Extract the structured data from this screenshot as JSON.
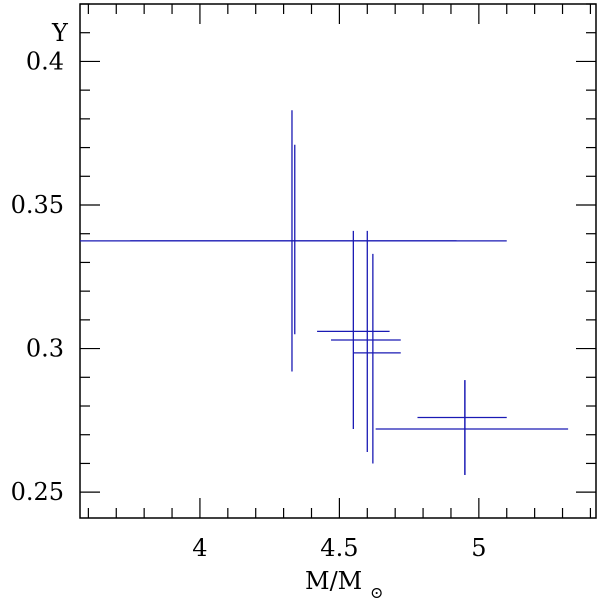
{
  "chart_data": {
    "type": "scatter",
    "xlabel": "M/M",
    "xlabel_subscript": "⊙",
    "ylabel": "Y",
    "xlim": [
      3.57,
      5.42
    ],
    "ylim": [
      0.241,
      0.42
    ],
    "x_ticks": [
      {
        "value": 4,
        "label": "4"
      },
      {
        "value": 4.5,
        "label": "4.5"
      },
      {
        "value": 5,
        "label": "5"
      }
    ],
    "y_ticks": [
      {
        "value": 0.25,
        "label": "0.25"
      },
      {
        "value": 0.3,
        "label": "0.3"
      },
      {
        "value": 0.35,
        "label": "0.35"
      },
      {
        "value": 0.4,
        "label": "0.4"
      }
    ],
    "x_minor_step": 0.1,
    "y_minor_step": 0.01,
    "grid": false,
    "series_color": "#1a1ab4",
    "points": [
      {
        "x": 4.33,
        "y": 0.3375,
        "x_min": 3.57,
        "x_max": 5.1,
        "y_min": 0.292,
        "y_max": 0.383
      },
      {
        "x": 4.34,
        "y": 0.3375,
        "x_min": 3.75,
        "x_max": 4.92,
        "y_min": 0.305,
        "y_max": 0.371
      },
      {
        "x": 4.55,
        "y": 0.306,
        "x_min": 4.42,
        "x_max": 4.68,
        "y_min": 0.272,
        "y_max": 0.341
      },
      {
        "x": 4.6,
        "y": 0.303,
        "x_min": 4.47,
        "x_max": 4.72,
        "y_min": 0.264,
        "y_max": 0.341
      },
      {
        "x": 4.62,
        "y": 0.2985,
        "x_min": 4.55,
        "x_max": 4.72,
        "y_min": 0.26,
        "y_max": 0.333
      },
      {
        "x": 4.95,
        "y": 0.276,
        "x_min": 4.78,
        "x_max": 5.1,
        "y_min": 0.256,
        "y_max": 0.289
      },
      {
        "x": 4.95,
        "y": 0.272,
        "x_min": 4.63,
        "x_max": 5.32,
        "y_min": 0.256,
        "y_max": 0.289
      }
    ]
  }
}
